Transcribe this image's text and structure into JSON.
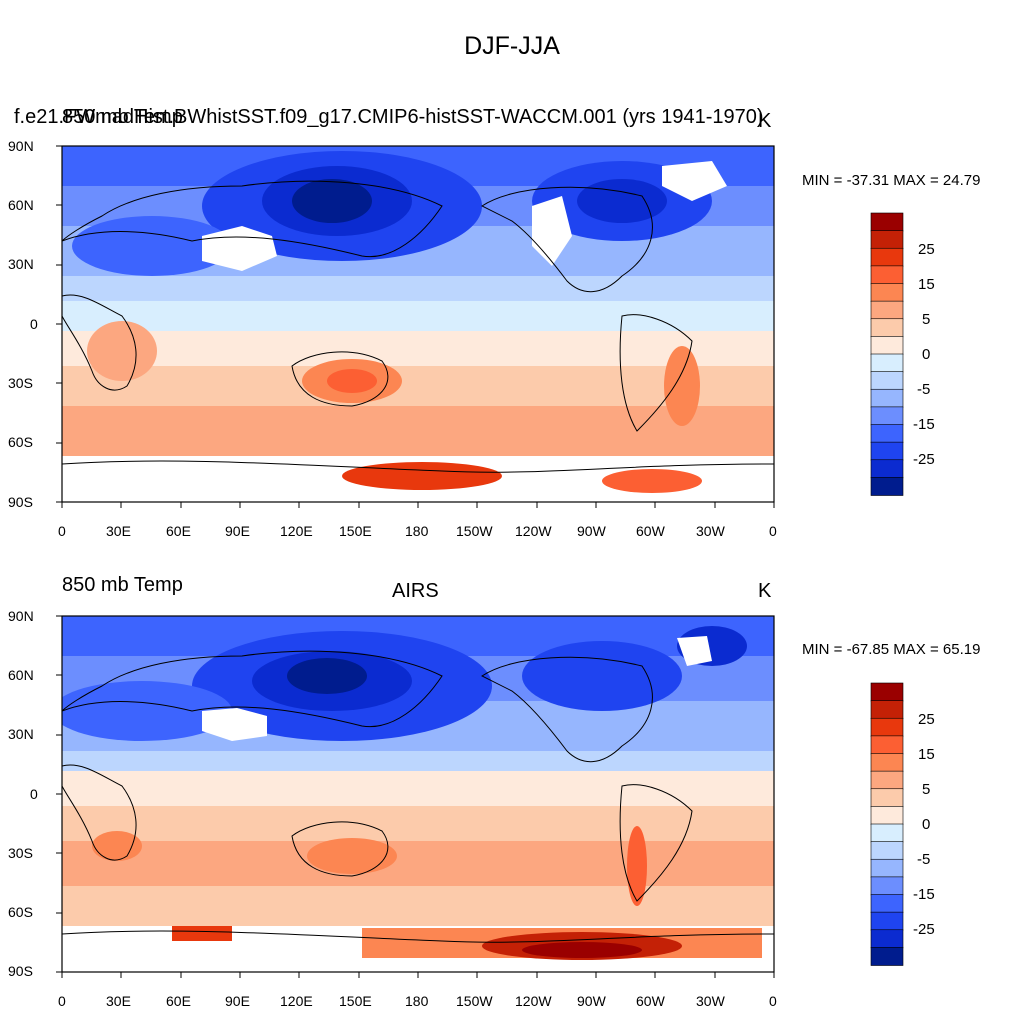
{
  "main_title": "DJF-JJA",
  "panels": [
    {
      "left_title": "850 mb Temp",
      "center_title": "f.e21.FWmadHist.BWhistSST.f09_g17.CMIP6-histSST-WACCM.001 (yrs 1941-1970)",
      "right_title": "K",
      "minmax": "MIN = -37.31 MAX =  24.79"
    },
    {
      "left_title": "850 mb Temp",
      "center_title": "AIRS",
      "right_title": "K",
      "minmax": "MIN = -67.85 MAX =  65.19"
    }
  ],
  "lat_labels": [
    "90N",
    "60N",
    "30N",
    "0",
    "30S",
    "60S",
    "90S"
  ],
  "lon_labels": [
    "0",
    "30E",
    "60E",
    "90E",
    "120E",
    "150E",
    "180",
    "150W",
    "120W",
    "90W",
    "60W",
    "30W",
    "0"
  ],
  "colorbar": {
    "colors": [
      "#9a0000",
      "#c42106",
      "#e8380d",
      "#fc5f33",
      "#fc8652",
      "#fca780",
      "#fccbab",
      "#feeadc",
      "#d8eefe",
      "#bcd6fe",
      "#96b6fe",
      "#6c8efe",
      "#3d64fe",
      "#1f44f0",
      "#0b2bd0",
      "#001c8e"
    ],
    "labels": [
      "25",
      "15",
      "5",
      "0",
      "-5",
      "-15",
      "-25"
    ]
  },
  "colors": {
    "deep_blue": "#001c8e",
    "blue": "#3d64fe",
    "light_blue": "#bcd6fe",
    "neutral": "#feeadc",
    "salmon": "#fca780",
    "red": "#e8380d",
    "dark_red": "#9a0000"
  }
}
